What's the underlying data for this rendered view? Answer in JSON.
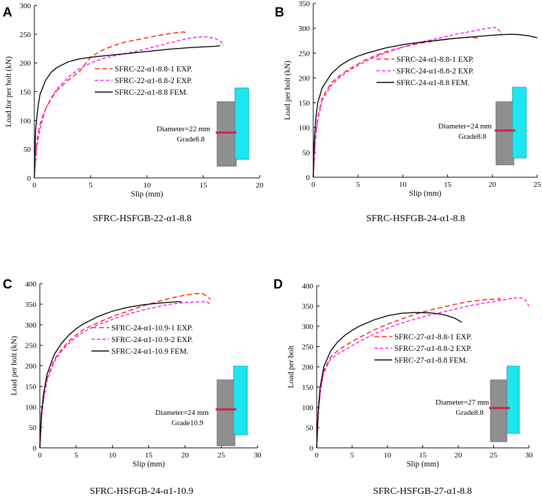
{
  "colors": {
    "exp1": "#ff2a1a",
    "exp2": "#ff22ff",
    "fem": "#000000",
    "concrete": "#8f8f8f",
    "steel": "#1ee6f0",
    "bolt": "#d0204a"
  },
  "chart_data": [
    {
      "type": "line",
      "panel": "A",
      "caption": "SFRC-HSFGB-22-α1-8.8",
      "xlabel": "Slip (mm)",
      "ylabel": "Load for per bolt (kN)",
      "xlim": [
        0,
        20
      ],
      "ylim": [
        0,
        300
      ],
      "xticks": [
        0,
        5,
        10,
        15,
        20
      ],
      "yticks": [
        0,
        50,
        100,
        150,
        200,
        250,
        300
      ],
      "legend_placement": "middle-right",
      "inset": {
        "line1": "Diameter=22 mm",
        "line2": "Grade8.8"
      },
      "series": [
        {
          "name": "SFRC-22-α1-8.8-1 EXP.",
          "style": "exp1",
          "x": [
            0,
            0.1,
            0.3,
            0.6,
            1.0,
            1.5,
            2.0,
            3.0,
            4.0,
            5.0,
            6.0,
            7.0,
            8.0,
            9.0,
            10.0,
            11.0,
            12.0,
            12.8,
            13.3,
            13.5
          ],
          "y": [
            0,
            40,
            75,
            100,
            120,
            138,
            152,
            170,
            185,
            210,
            222,
            230,
            236,
            240,
            244,
            248,
            251,
            253,
            254,
            250
          ]
        },
        {
          "name": "SFRC-22-α1-8.8-2 EXP.",
          "style": "exp2",
          "x": [
            0,
            0.2,
            0.5,
            1.0,
            1.5,
            2.0,
            3.0,
            4.0,
            5.0,
            6.0,
            7.0,
            8.0,
            9.0,
            10.0,
            11.0,
            12.0,
            13.0,
            14.0,
            15.0,
            16.0,
            16.5,
            16.8
          ],
          "y": [
            0,
            50,
            85,
            120,
            140,
            155,
            175,
            190,
            200,
            207,
            212,
            216,
            220,
            225,
            230,
            235,
            240,
            244,
            246,
            243,
            238,
            230
          ]
        },
        {
          "name": "SFRC-22-α1-8.8 FEM.",
          "style": "fem",
          "x": [
            0,
            0.1,
            0.3,
            0.5,
            1.0,
            1.5,
            2.0,
            3.0,
            4.0,
            5.0,
            6.0,
            8.0,
            10.0,
            12.0,
            14.0,
            16.0,
            16.5
          ],
          "y": [
            0,
            80,
            120,
            145,
            170,
            184,
            192,
            202,
            207,
            210,
            212,
            216,
            220,
            224,
            227,
            229,
            230
          ]
        }
      ]
    },
    {
      "type": "line",
      "panel": "B",
      "caption": "SFRC-HSFGB-24-α1-8.8",
      "xlabel": "Slip (mm)",
      "ylabel": "Load per bolt (kN)",
      "xlim": [
        0,
        25
      ],
      "ylim": [
        0,
        350
      ],
      "xticks": [
        0,
        5,
        10,
        15,
        20,
        25
      ],
      "yticks": [
        0,
        50,
        100,
        150,
        200,
        250,
        300,
        350
      ],
      "legend_placement": "middle-right",
      "inset": {
        "line1": "Diameter=24 mm",
        "line2": "Grade8.8"
      },
      "series": [
        {
          "name": "SFRC-24-α1-8.8-1 EXP.",
          "style": "exp1",
          "x": [
            0,
            0.2,
            0.5,
            1.0,
            2.0,
            3.0,
            4.0,
            5.0,
            6.0,
            7.0,
            8.0,
            10.0,
            12.0,
            14.0,
            16.0,
            17.5,
            18.5
          ],
          "y": [
            0,
            70,
            120,
            160,
            190,
            205,
            218,
            228,
            238,
            245,
            252,
            262,
            270,
            276,
            280,
            282,
            280
          ]
        },
        {
          "name": "SFRC-24-α1-8.8-2 EXP.",
          "style": "exp2",
          "x": [
            0,
            0.2,
            0.5,
            1.0,
            2.0,
            3.0,
            4.0,
            5.0,
            6.0,
            8.0,
            10.0,
            12.0,
            14.0,
            16.0,
            18.0,
            19.5,
            20.3,
            20.8,
            21.0
          ],
          "y": [
            0,
            65,
            115,
            155,
            185,
            202,
            215,
            225,
            235,
            250,
            262,
            272,
            280,
            288,
            295,
            300,
            302,
            295,
            288
          ]
        },
        {
          "name": "SFRC-24-α1-8.8 FEM.",
          "style": "fem",
          "x": [
            0,
            0.1,
            0.3,
            0.5,
            1.0,
            2.0,
            3.0,
            4.0,
            5.0,
            6.0,
            8.0,
            10.0,
            12.0,
            14.0,
            16.0,
            18.0,
            20.0,
            22.0,
            23.0,
            24.0,
            25.0
          ],
          "y": [
            0,
            70,
            120,
            150,
            180,
            208,
            225,
            236,
            244,
            250,
            260,
            267,
            272,
            276,
            280,
            283,
            286,
            288,
            287,
            285,
            281
          ]
        }
      ]
    },
    {
      "type": "line",
      "panel": "C",
      "caption": "SFRC-HSFGB-24-α1-10.9",
      "xlabel": "Slip (mm)",
      "ylabel": "Load per bolt (kN)",
      "xlim": [
        0,
        30
      ],
      "ylim": [
        0,
        400
      ],
      "xticks": [
        0,
        5,
        10,
        15,
        20,
        25,
        30
      ],
      "yticks": [
        0,
        50,
        100,
        150,
        200,
        250,
        300,
        350,
        400
      ],
      "legend_placement": "middle-right",
      "inset": {
        "line1": "Diameter=24 mm",
        "line2": "Grade10.9"
      },
      "series": [
        {
          "name": "SFRC-24-α1-10.9-1 EXP.",
          "style": "exp1",
          "x": [
            0,
            0.2,
            0.5,
            1.0,
            2.0,
            3.0,
            4.0,
            5.0,
            6.0,
            8.0,
            10.0,
            12.0,
            14.0,
            16.0,
            18.0,
            20.0,
            21.5,
            22.5,
            23.0,
            23.5
          ],
          "y": [
            0,
            70,
            120,
            170,
            215,
            240,
            260,
            275,
            288,
            305,
            320,
            332,
            345,
            355,
            365,
            372,
            376,
            375,
            370,
            362
          ]
        },
        {
          "name": "SFRC-24-α1-10.9-2 EXP.",
          "style": "exp2",
          "x": [
            0,
            0.2,
            0.5,
            1.0,
            2.0,
            3.0,
            4.0,
            5.0,
            6.0,
            8.0,
            10.0,
            12.0,
            14.0,
            16.0,
            18.0,
            20.0,
            22.0,
            23.0,
            23.5
          ],
          "y": [
            0,
            65,
            115,
            165,
            210,
            236,
            255,
            270,
            282,
            300,
            313,
            325,
            335,
            343,
            350,
            354,
            356,
            356,
            350
          ]
        },
        {
          "name": "SFRC-24-α1-10.9 FEM.",
          "style": "fem",
          "x": [
            0,
            0.2,
            0.5,
            1.0,
            2.0,
            3.0,
            4.0,
            5.0,
            6.0,
            8.0,
            10.0,
            12.0,
            14.0,
            16.0,
            18.0,
            19.0,
            19.5
          ],
          "y": [
            0,
            80,
            130,
            180,
            228,
            255,
            275,
            290,
            302,
            320,
            333,
            342,
            348,
            352,
            355,
            356,
            356
          ]
        }
      ]
    },
    {
      "type": "line",
      "panel": "D",
      "caption": "SFRC-HSFGB-27-α1-8.8",
      "xlabel": "Slip (mm)",
      "ylabel": "Load per bolt",
      "xlim": [
        0,
        30
      ],
      "ylim": [
        0,
        400
      ],
      "xticks": [
        0,
        5,
        10,
        15,
        20,
        25,
        30
      ],
      "yticks": [
        0,
        50,
        100,
        150,
        200,
        250,
        300,
        350,
        400
      ],
      "legend_placement": "middle-right",
      "inset": {
        "line1": "Diameter=27 mm",
        "line2": "Grade8.8"
      },
      "series": [
        {
          "name": "SFRC-27-α1-8.8-1 EXP.",
          "style": "exp1",
          "x": [
            0,
            0.2,
            0.5,
            1.0,
            2.0,
            3.0,
            4.0,
            5.0,
            6.0,
            8.0,
            10.0,
            12.0,
            14.0,
            16.0,
            18.0,
            20.0,
            22.0,
            24.0,
            26.0
          ],
          "y": [
            0,
            80,
            140,
            190,
            225,
            240,
            252,
            262,
            272,
            290,
            305,
            318,
            330,
            340,
            348,
            356,
            362,
            366,
            368
          ]
        },
        {
          "name": "SFRC-27-α1-8.8-2 EXP.",
          "style": "exp2",
          "x": [
            0,
            0.2,
            0.5,
            1.0,
            2.0,
            3.0,
            4.0,
            5.0,
            6.0,
            8.0,
            10.0,
            12.0,
            14.0,
            16.0,
            18.0,
            20.0,
            22.0,
            24.0,
            26.0,
            28.0,
            29.0,
            29.5,
            30.0
          ],
          "y": [
            0,
            75,
            135,
            185,
            220,
            232,
            242,
            252,
            262,
            280,
            295,
            308,
            318,
            328,
            336,
            344,
            352,
            358,
            364,
            370,
            370,
            365,
            350
          ]
        },
        {
          "name": "SFRC-27-α1-8.8 FEM.",
          "style": "fem",
          "x": [
            0,
            0.2,
            0.5,
            1.0,
            2.0,
            3.0,
            4.0,
            5.0,
            6.0,
            8.0,
            10.0,
            12.0,
            14.0,
            16.0,
            17.5,
            18.5,
            19.5,
            20.5
          ],
          "y": [
            0,
            90,
            150,
            200,
            240,
            262,
            278,
            290,
            300,
            315,
            326,
            332,
            334,
            333,
            330,
            326,
            320,
            310
          ]
        }
      ]
    }
  ]
}
